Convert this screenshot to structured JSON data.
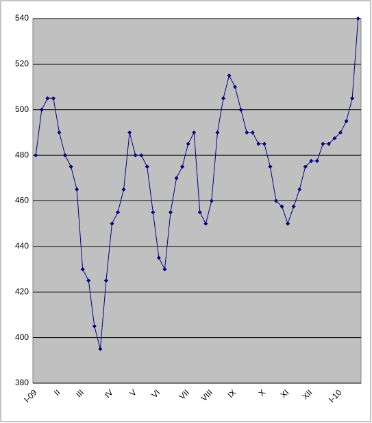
{
  "chart_data": {
    "type": "line",
    "categories": [
      "I-09",
      null,
      null,
      null,
      "II",
      null,
      null,
      null,
      "III",
      null,
      null,
      null,
      null,
      "IV",
      null,
      null,
      null,
      "V",
      null,
      null,
      null,
      "VI",
      null,
      null,
      null,
      null,
      "VII",
      null,
      null,
      null,
      "VIII",
      null,
      null,
      null,
      "IX",
      null,
      null,
      null,
      null,
      "X",
      null,
      null,
      null,
      "XI",
      null,
      null,
      null,
      "XII",
      null,
      null,
      null,
      null,
      "I-10",
      null,
      null,
      null
    ],
    "series": [
      {
        "color": "#000080",
        "values": [
          480,
          500,
          505,
          505,
          490,
          480,
          475,
          465,
          430,
          425,
          405,
          395,
          425,
          450,
          455,
          465,
          490,
          480,
          480,
          475,
          455,
          435,
          430,
          455,
          470,
          475,
          485,
          490,
          455,
          450,
          460,
          490,
          505,
          515,
          510,
          500,
          490,
          490,
          485,
          485,
          475,
          460,
          457.5,
          450,
          457.5,
          465,
          475,
          477.5,
          477.5,
          485,
          485,
          487.5,
          490,
          495,
          505,
          540
        ]
      }
    ],
    "ylim": [
      380,
      540
    ],
    "yticks": [
      380,
      400,
      420,
      440,
      460,
      480,
      500,
      520,
      540
    ],
    "grid": true,
    "background": "#c0c0c0"
  }
}
